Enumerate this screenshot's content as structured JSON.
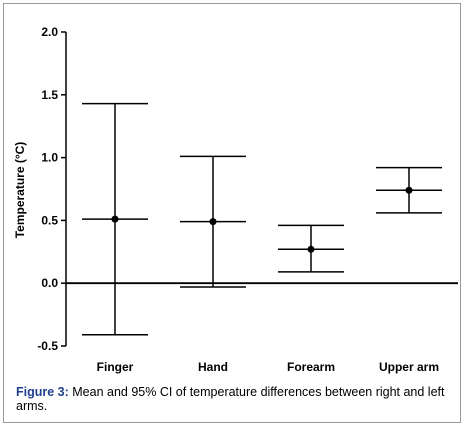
{
  "caption": {
    "label": "Figure 3:",
    "text": " Mean and 95% CI of temperature differences between right and left arms."
  },
  "chart_data": {
    "type": "errorbar",
    "ylabel": "Temperature (°C)",
    "xlabel": "",
    "ylim": [
      -0.5,
      2.0
    ],
    "yticks": [
      "2.0",
      "1.5",
      "1.0",
      "0.5",
      "0.0",
      "-0.5"
    ],
    "ytick_values": [
      2.0,
      1.5,
      1.0,
      0.5,
      0.0,
      -0.5
    ],
    "categories": [
      "Finger",
      "Hand",
      "Forearm",
      "Upper arm"
    ],
    "mean": [
      0.51,
      0.49,
      0.27,
      0.74
    ],
    "ci_lower": [
      -0.41,
      -0.03,
      0.09,
      0.56
    ],
    "ci_upper": [
      1.43,
      1.01,
      0.46,
      0.92
    ],
    "reference_line": 0.0,
    "grid": false
  }
}
